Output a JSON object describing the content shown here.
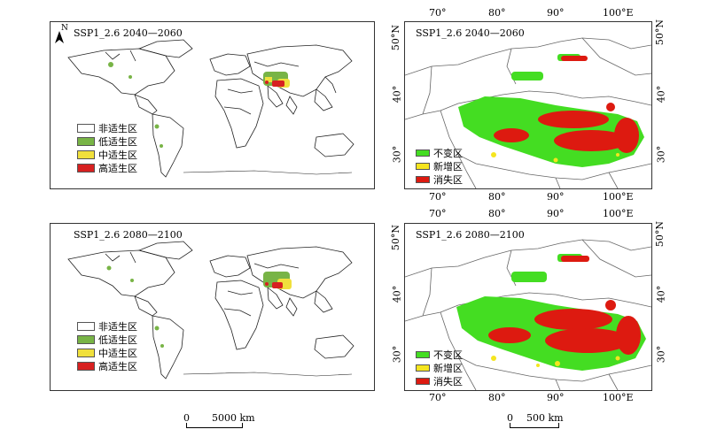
{
  "colors": {
    "non_suitable": "#ffffff",
    "low_suitable": "#78b446",
    "mid_suitable": "#f0e03c",
    "high_suitable": "#d72020",
    "unchanged": "#44dd22",
    "new": "#f5e51e",
    "lost": "#dd1a10"
  },
  "north_label": "N",
  "world_panels": [
    {
      "title": "SSP1_2.6 2040—2060"
    },
    {
      "title": "SSP1_2.6 2080—2100"
    }
  ],
  "region_panels": [
    {
      "title": "SSP1_2.6 2040—2060"
    },
    {
      "title": "SSP1_2.6 2080—2100"
    }
  ],
  "world_legend": [
    {
      "label": "非适生区",
      "color_key": "non_suitable"
    },
    {
      "label": "低适生区",
      "color_key": "low_suitable"
    },
    {
      "label": "中适生区",
      "color_key": "mid_suitable"
    },
    {
      "label": "高适生区",
      "color_key": "high_suitable"
    }
  ],
  "region_legend": [
    {
      "label": "不变区",
      "color_key": "unchanged"
    },
    {
      "label": "新增区",
      "color_key": "new"
    },
    {
      "label": "消失区",
      "color_key": "lost"
    }
  ],
  "lon_ticks": [
    "70°",
    "80°",
    "90°",
    "100°E"
  ],
  "lat_ticks": [
    "50°N",
    "40°",
    "30°"
  ],
  "world_scale": {
    "zero": "0",
    "label": "5000 km"
  },
  "region_scale": {
    "zero": "0",
    "label": "500 km"
  }
}
